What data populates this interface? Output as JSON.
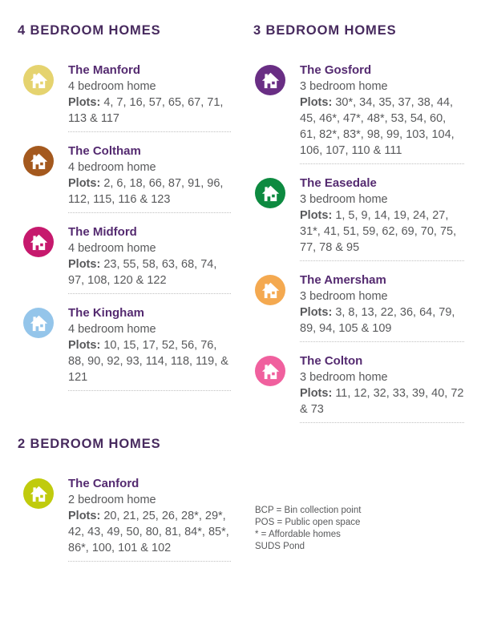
{
  "colors": {
    "heading": "#472a5e",
    "home_name": "#542a70",
    "body_text": "#58595b",
    "divider": "#c0c0c0",
    "background": "#ffffff",
    "icon_glyph": "#ffffff"
  },
  "columns": [
    {
      "side": "left",
      "sections": [
        {
          "heading": "4 BEDROOM HOMES",
          "homes": [
            {
              "name": "The Manford",
              "type": "4 bedroom home",
              "plots_label": "Plots:",
              "plots": "4, 7, 16, 57, 65, 67, 71, 113 & 117",
              "icon": "house-icon",
              "icon_color": "#e5d36f"
            },
            {
              "name": "The Coltham",
              "type": "4 bedroom home",
              "plots_label": "Plots:",
              "plots": "2, 6, 18, 66, 87, 91, 96, 112, 115, 116 & 123",
              "icon": "house-icon",
              "icon_color": "#a4591e"
            },
            {
              "name": "The Midford",
              "type": "4 bedroom home",
              "plots_label": "Plots:",
              "plots": "23, 55, 58, 63, 68, 74, 97, 108, 120 & 122",
              "icon": "house-icon",
              "icon_color": "#c6196d"
            },
            {
              "name": "The Kingham",
              "type": "4 bedroom home",
              "plots_label": "Plots:",
              "plots": "10, 15, 17, 52, 56, 76, 88, 90, 92, 93, 114, 118, 119, & 121",
              "icon": "house-icon",
              "icon_color": "#94c5ea"
            }
          ]
        },
        {
          "heading": "2 BEDROOM HOMES",
          "homes": [
            {
              "name": "The Canford",
              "type": "2 bedroom home",
              "plots_label": "Plots:",
              "plots": "20, 21, 25, 26, 28*, 29*, 42, 43, 49, 50, 80, 81, 84*, 85*, 86*, 100, 101 & 102",
              "icon": "house-icon",
              "icon_color": "#c0cb0d"
            }
          ]
        }
      ],
      "notes": []
    },
    {
      "side": "right",
      "sections": [
        {
          "heading": "3 BEDROOM HOMES",
          "homes": [
            {
              "name": "The Gosford",
              "type": "3 bedroom home",
              "plots_label": "Plots:",
              "plots": "30*, 34, 35, 37, 38, 44, 45, 46*, 47*, 48*, 53, 54, 60, 61, 82*, 83*, 98, 99, 103, 104, 106, 107, 110 & 111",
              "icon": "house-icon",
              "icon_color": "#692e84"
            },
            {
              "name": "The Easedale",
              "type": "3 bedroom home",
              "plots_label": "Plots:",
              "plots": "1, 5, 9, 14, 19, 24, 27, 31*, 41, 51, 59, 62, 69, 70, 75, 77, 78 & 95",
              "icon": "house-icon",
              "icon_color": "#0d8a40"
            },
            {
              "name": "The Amersham",
              "type": "3 bedroom home",
              "plots_label": "Plots:",
              "plots": "3, 8, 13, 22, 36, 64, 79, 89, 94, 105 & 109",
              "icon": "house-icon",
              "icon_color": "#f4a950"
            },
            {
              "name": "The Colton",
              "type": "3 bedroom home",
              "plots_label": "Plots:",
              "plots": "11, 12, 32, 33, 39, 40, 72 & 73",
              "icon": "house-icon",
              "icon_color": "#f0609e"
            }
          ]
        }
      ],
      "notes": [
        "BCP = Bin collection point",
        "POS = Public open space",
        "* = Affordable homes",
        "SUDS Pond"
      ]
    }
  ]
}
